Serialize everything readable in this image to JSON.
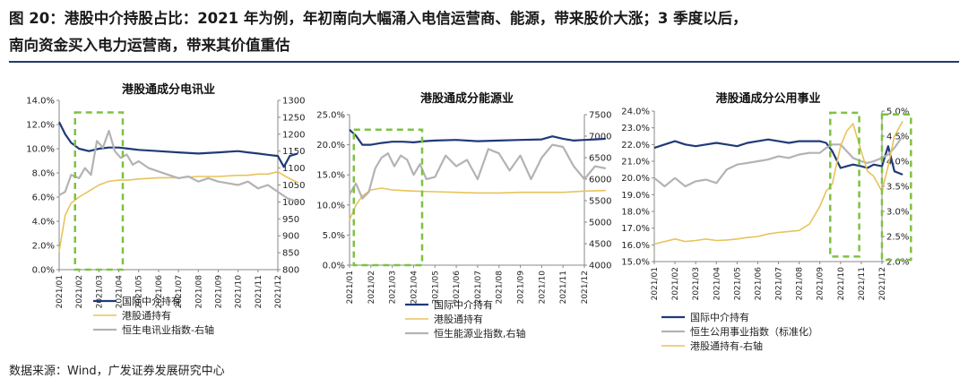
{
  "figure": {
    "title_line1": "图 20：港股中介持股占比：2021 年为例，年初南向大幅涌入电信运营商、能源，带来股价大涨；3 季度以后，",
    "title_line2": "南向资金买入电力运营商，带来其价值重估",
    "source": "数据来源：Wind，广发证券发展研究中心"
  },
  "colors": {
    "ccass": "#1f3a78",
    "southbound": "#e8c35a",
    "index": "#b3b3b3",
    "highlight": "#7dc242",
    "title_rule": "#243a6b"
  },
  "chart_data": [
    {
      "type": "line",
      "title": "港股通成分电讯业",
      "x_ticks": [
        "2021/01",
        "2021/02",
        "2021/03",
        "2021/04",
        "2021/05",
        "2021/06",
        "2021/07",
        "2021/08",
        "2021/09",
        "2021/10",
        "2021/11",
        "2021/12"
      ],
      "y_left": {
        "ticks": [
          "0.0%",
          "2.0%",
          "4.0%",
          "6.0%",
          "8.0%",
          "10.0%",
          "12.0%",
          "14.0%"
        ],
        "range": [
          0,
          14
        ]
      },
      "y_right": {
        "ticks": [
          "800",
          "850",
          "900",
          "950",
          "1000",
          "1050",
          "1100",
          "1150",
          "1200",
          "1250",
          "1300"
        ],
        "range": [
          800,
          1300
        ]
      },
      "series": [
        {
          "name": "国际中介持有",
          "axis": "left",
          "style": "ccass",
          "x": [
            0,
            0.3,
            0.6,
            1,
            1.5,
            2,
            2.5,
            3,
            3.5,
            4,
            5,
            6,
            7,
            8,
            9,
            9.5,
            10,
            10.5,
            11,
            11.3,
            11.6,
            12
          ],
          "values": [
            12.2,
            11.2,
            10.5,
            10.0,
            9.8,
            10.0,
            10.1,
            10.1,
            10.0,
            9.9,
            9.8,
            9.7,
            9.6,
            9.7,
            9.8,
            9.7,
            9.6,
            9.5,
            9.4,
            8.5,
            9.4,
            9.6
          ]
        },
        {
          "name": "港股通持有",
          "axis": "left",
          "style": "southbound",
          "x": [
            0,
            0.3,
            0.6,
            1,
            1.5,
            2,
            2.5,
            3,
            3.5,
            4,
            5,
            6,
            7,
            8,
            9,
            9.5,
            10,
            10.5,
            11,
            11.5,
            12
          ],
          "values": [
            1.5,
            4.5,
            5.5,
            6.0,
            6.5,
            7.0,
            7.3,
            7.4,
            7.4,
            7.5,
            7.6,
            7.6,
            7.7,
            7.7,
            7.8,
            7.8,
            7.9,
            7.9,
            8.1,
            7.6,
            7.2
          ]
        },
        {
          "name": "恒生电讯业指数-右轴",
          "axis": "right",
          "style": "index",
          "x": [
            0,
            0.3,
            0.6,
            1,
            1.3,
            1.6,
            1.9,
            2.2,
            2.5,
            2.8,
            3.1,
            3.4,
            3.7,
            4,
            4.5,
            5,
            5.5,
            6,
            6.5,
            7,
            7.5,
            8,
            8.5,
            9,
            9.5,
            10,
            10.5,
            11,
            11.5,
            12
          ],
          "values": [
            1020,
            1030,
            1080,
            1070,
            1100,
            1080,
            1180,
            1160,
            1210,
            1150,
            1130,
            1140,
            1110,
            1120,
            1100,
            1090,
            1080,
            1070,
            1075,
            1060,
            1070,
            1060,
            1055,
            1050,
            1060,
            1040,
            1050,
            1030,
            1010,
            1000
          ]
        }
      ],
      "highlight": {
        "from": 0.8,
        "to": 3.2,
        "y_top": 13,
        "y_bottom": 0
      }
    },
    {
      "type": "line",
      "title": "港股通成分能源业",
      "x_ticks": [
        "2021/01",
        "2021/02",
        "2021/03",
        "2021/04",
        "2021/05",
        "2021/06",
        "2021/07",
        "2021/08",
        "2021/09",
        "2021/10",
        "2021/11",
        "2021/12"
      ],
      "y_left": {
        "ticks": [
          "0.0%",
          "5.0%",
          "10.0%",
          "15.0%",
          "20.0%",
          "25.0%"
        ],
        "range": [
          0,
          25
        ]
      },
      "y_right": {
        "ticks": [
          "4000",
          "4500",
          "5000",
          "5500",
          "6000",
          "6500",
          "7000",
          "7500"
        ],
        "range": [
          4000,
          7500
        ]
      },
      "series": [
        {
          "name": "国际中介持有",
          "axis": "left",
          "style": "ccass",
          "x": [
            0,
            0.3,
            0.6,
            1,
            1.5,
            2,
            2.5,
            3,
            3.5,
            4,
            5,
            6,
            7,
            8,
            9,
            9.5,
            10,
            10.5,
            11,
            11.5,
            12
          ],
          "values": [
            22.5,
            21.5,
            20.0,
            20.0,
            20.3,
            20.5,
            20.5,
            20.4,
            20.6,
            20.7,
            20.8,
            20.6,
            20.7,
            20.8,
            20.9,
            21.4,
            21.0,
            20.7,
            20.8,
            20.9,
            21.0
          ]
        },
        {
          "name": "港股通持有",
          "axis": "left",
          "style": "southbound",
          "x": [
            0,
            0.3,
            0.6,
            1,
            1.5,
            2,
            2.5,
            3,
            4,
            5,
            6,
            7,
            8,
            9,
            10,
            11,
            12
          ],
          "values": [
            7.5,
            10.0,
            11.5,
            12.5,
            12.8,
            12.5,
            12.4,
            12.3,
            12.2,
            12.1,
            12.0,
            12.0,
            12.1,
            12.1,
            12.1,
            12.3,
            12.4
          ]
        },
        {
          "name": "恒生能源业指数,右轴",
          "axis": "right",
          "style": "index",
          "x": [
            0,
            0.3,
            0.6,
            0.9,
            1.2,
            1.5,
            1.8,
            2.1,
            2.4,
            2.7,
            3,
            3.3,
            3.6,
            4,
            4.5,
            5,
            5.5,
            6,
            6.5,
            7,
            7.5,
            8,
            8.5,
            9,
            9.5,
            10,
            10.5,
            11,
            11.5,
            12
          ],
          "values": [
            5650,
            5900,
            5550,
            5700,
            6250,
            6500,
            6600,
            6300,
            6550,
            6450,
            6100,
            6350,
            6000,
            6050,
            6550,
            6300,
            6450,
            6000,
            6700,
            6600,
            6200,
            6550,
            6000,
            6500,
            6800,
            6750,
            6300,
            6000,
            6300,
            6250
          ]
        }
      ],
      "highlight": {
        "from": 0.2,
        "to": 3.4,
        "y_top": 22.5,
        "y_bottom": 0
      }
    },
    {
      "type": "line",
      "title": "港股通成分公用事业",
      "x_ticks": [
        "2021/01",
        "2021/02",
        "2021/03",
        "2021/04",
        "2021/05",
        "2021/06",
        "2021/07",
        "2021/08",
        "2021/09",
        "2021/10",
        "2021/11",
        "2021/12"
      ],
      "y_left": {
        "ticks": [
          "15.0%",
          "16.0%",
          "17.0%",
          "18.0%",
          "19.0%",
          "20.0%",
          "21.0%",
          "22.0%",
          "23.0%",
          "24.0%"
        ],
        "range": [
          15,
          24
        ]
      },
      "y_right": {
        "ticks": [
          "2.0%",
          "2.5%",
          "3.0%",
          "3.5%",
          "4.0%",
          "4.5%",
          "5.0%"
        ],
        "range": [
          2.0,
          5.0
        ]
      },
      "series": [
        {
          "name": "国际中介持有",
          "axis": "left",
          "style": "ccass",
          "x": [
            0,
            0.5,
            1,
            1.5,
            2,
            2.5,
            3,
            3.5,
            4,
            4.5,
            5,
            5.5,
            6,
            6.5,
            7,
            7.5,
            8,
            8.3,
            8.6,
            9,
            9.3,
            9.6,
            10,
            10.3,
            10.6,
            11,
            11.3,
            11.6,
            12
          ],
          "values": [
            21.8,
            22.0,
            22.2,
            22.0,
            21.9,
            22.0,
            22.1,
            22.0,
            21.9,
            22.1,
            22.2,
            22.3,
            22.2,
            22.1,
            22.2,
            22.2,
            22.2,
            22.1,
            21.6,
            20.6,
            20.7,
            20.8,
            20.7,
            20.6,
            20.8,
            20.7,
            21.9,
            20.4,
            20.2
          ]
        },
        {
          "name": "恒生公用事业指数（标准化）",
          "axis": "left",
          "style": "index",
          "x": [
            0,
            0.5,
            1,
            1.5,
            2,
            2.5,
            3,
            3.5,
            4,
            4.5,
            5,
            5.5,
            6,
            6.5,
            7,
            7.5,
            8,
            8.3,
            8.6,
            9,
            9.3,
            9.6,
            10,
            10.3,
            10.6,
            11,
            11.3,
            11.6,
            12
          ],
          "values": [
            20.0,
            19.5,
            20.0,
            19.5,
            19.8,
            19.9,
            19.7,
            20.5,
            20.8,
            20.9,
            21.0,
            21.1,
            21.3,
            21.2,
            21.4,
            21.5,
            21.5,
            21.8,
            22.0,
            22.0,
            21.6,
            21.2,
            21.0,
            20.9,
            21.0,
            21.2,
            21.4,
            21.8,
            22.5
          ]
        },
        {
          "name": "港股通持有-右轴",
          "axis": "right",
          "style": "southbound",
          "x": [
            0,
            0.5,
            1,
            1.5,
            2,
            2.5,
            3,
            3.5,
            4,
            4.5,
            5,
            5.5,
            6,
            6.5,
            7,
            7.5,
            8,
            8.3,
            8.6,
            9,
            9.3,
            9.6,
            10,
            10.3,
            10.6,
            11,
            11.3,
            11.6,
            12
          ],
          "values": [
            2.35,
            2.4,
            2.45,
            2.4,
            2.42,
            2.45,
            2.42,
            2.43,
            2.45,
            2.48,
            2.5,
            2.55,
            2.58,
            2.6,
            2.62,
            2.75,
            3.1,
            3.4,
            3.55,
            4.3,
            4.6,
            4.75,
            4.2,
            3.8,
            3.7,
            3.4,
            3.9,
            4.5,
            4.8
          ]
        }
      ],
      "highlight_multi": [
        {
          "from": 8.5,
          "to": 9.9,
          "y_top": 23.9,
          "y_bottom": 15.3
        },
        {
          "from": 11.0,
          "to": 12.4,
          "y_top": 23.8,
          "y_bottom": 15.1
        }
      ]
    }
  ]
}
